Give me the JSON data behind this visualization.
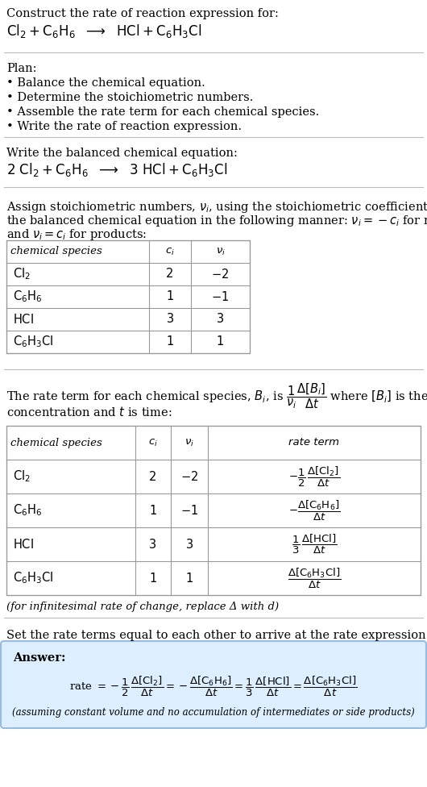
{
  "bg_color": "#ffffff",
  "text_color": "#000000",
  "answer_bg": "#ddeeff",
  "title_line1": "Construct the rate of reaction expression for:",
  "plan_header": "Plan:",
  "plan_items": [
    "• Balance the chemical equation.",
    "• Determine the stoichiometric numbers.",
    "• Assemble the rate term for each chemical species.",
    "• Write the rate of reaction expression."
  ],
  "balanced_header": "Write the balanced chemical equation:",
  "stoich_line1": "Assign stoichiometric numbers, $\\nu_i$, using the stoichiometric coefficients, $c_i$, from",
  "stoich_line2": "the balanced chemical equation in the following manner: $\\nu_i = -c_i$ for reactants",
  "stoich_line3": "and $\\nu_i = c_i$ for products:",
  "table1_species": [
    "$\\mathrm{Cl_2}$",
    "$\\mathrm{C_6H_6}$",
    "$\\mathrm{HCl}$",
    "$\\mathrm{C_6H_3Cl}$"
  ],
  "table1_ci": [
    "2",
    "1",
    "3",
    "1"
  ],
  "table1_vi": [
    "-2",
    "-1",
    "3",
    "1"
  ],
  "rate_line1": "The rate term for each chemical species, $B_i$, is $\\dfrac{1}{\\nu_i}\\dfrac{\\Delta[B_i]}{\\Delta t}$ where $[B_i]$ is the amount",
  "rate_line2": "concentration and $t$ is time:",
  "table2_species": [
    "$\\mathrm{Cl_2}$",
    "$\\mathrm{C_6H_6}$",
    "$\\mathrm{HCl}$",
    "$\\mathrm{C_6H_3Cl}$"
  ],
  "table2_ci": [
    "2",
    "1",
    "3",
    "1"
  ],
  "table2_vi": [
    "-2",
    "-1",
    "3",
    "1"
  ],
  "table2_rate": [
    "$-\\dfrac{1}{2}\\,\\dfrac{\\Delta[\\mathrm{Cl_2}]}{\\Delta t}$",
    "$-\\dfrac{\\Delta[\\mathrm{C_6H_6}]}{\\Delta t}$",
    "$\\dfrac{1}{3}\\,\\dfrac{\\Delta[\\mathrm{HCl}]}{\\Delta t}$",
    "$\\dfrac{\\Delta[\\mathrm{C_6H_3Cl}]}{\\Delta t}$"
  ],
  "infinitesimal_note": "(for infinitesimal rate of change, replace Δ with d)",
  "set_rate_header": "Set the rate terms equal to each other to arrive at the rate expression:",
  "answer_label": "Answer:",
  "assuming_note": "(assuming constant volume and no accumulation of intermediates or side products)"
}
